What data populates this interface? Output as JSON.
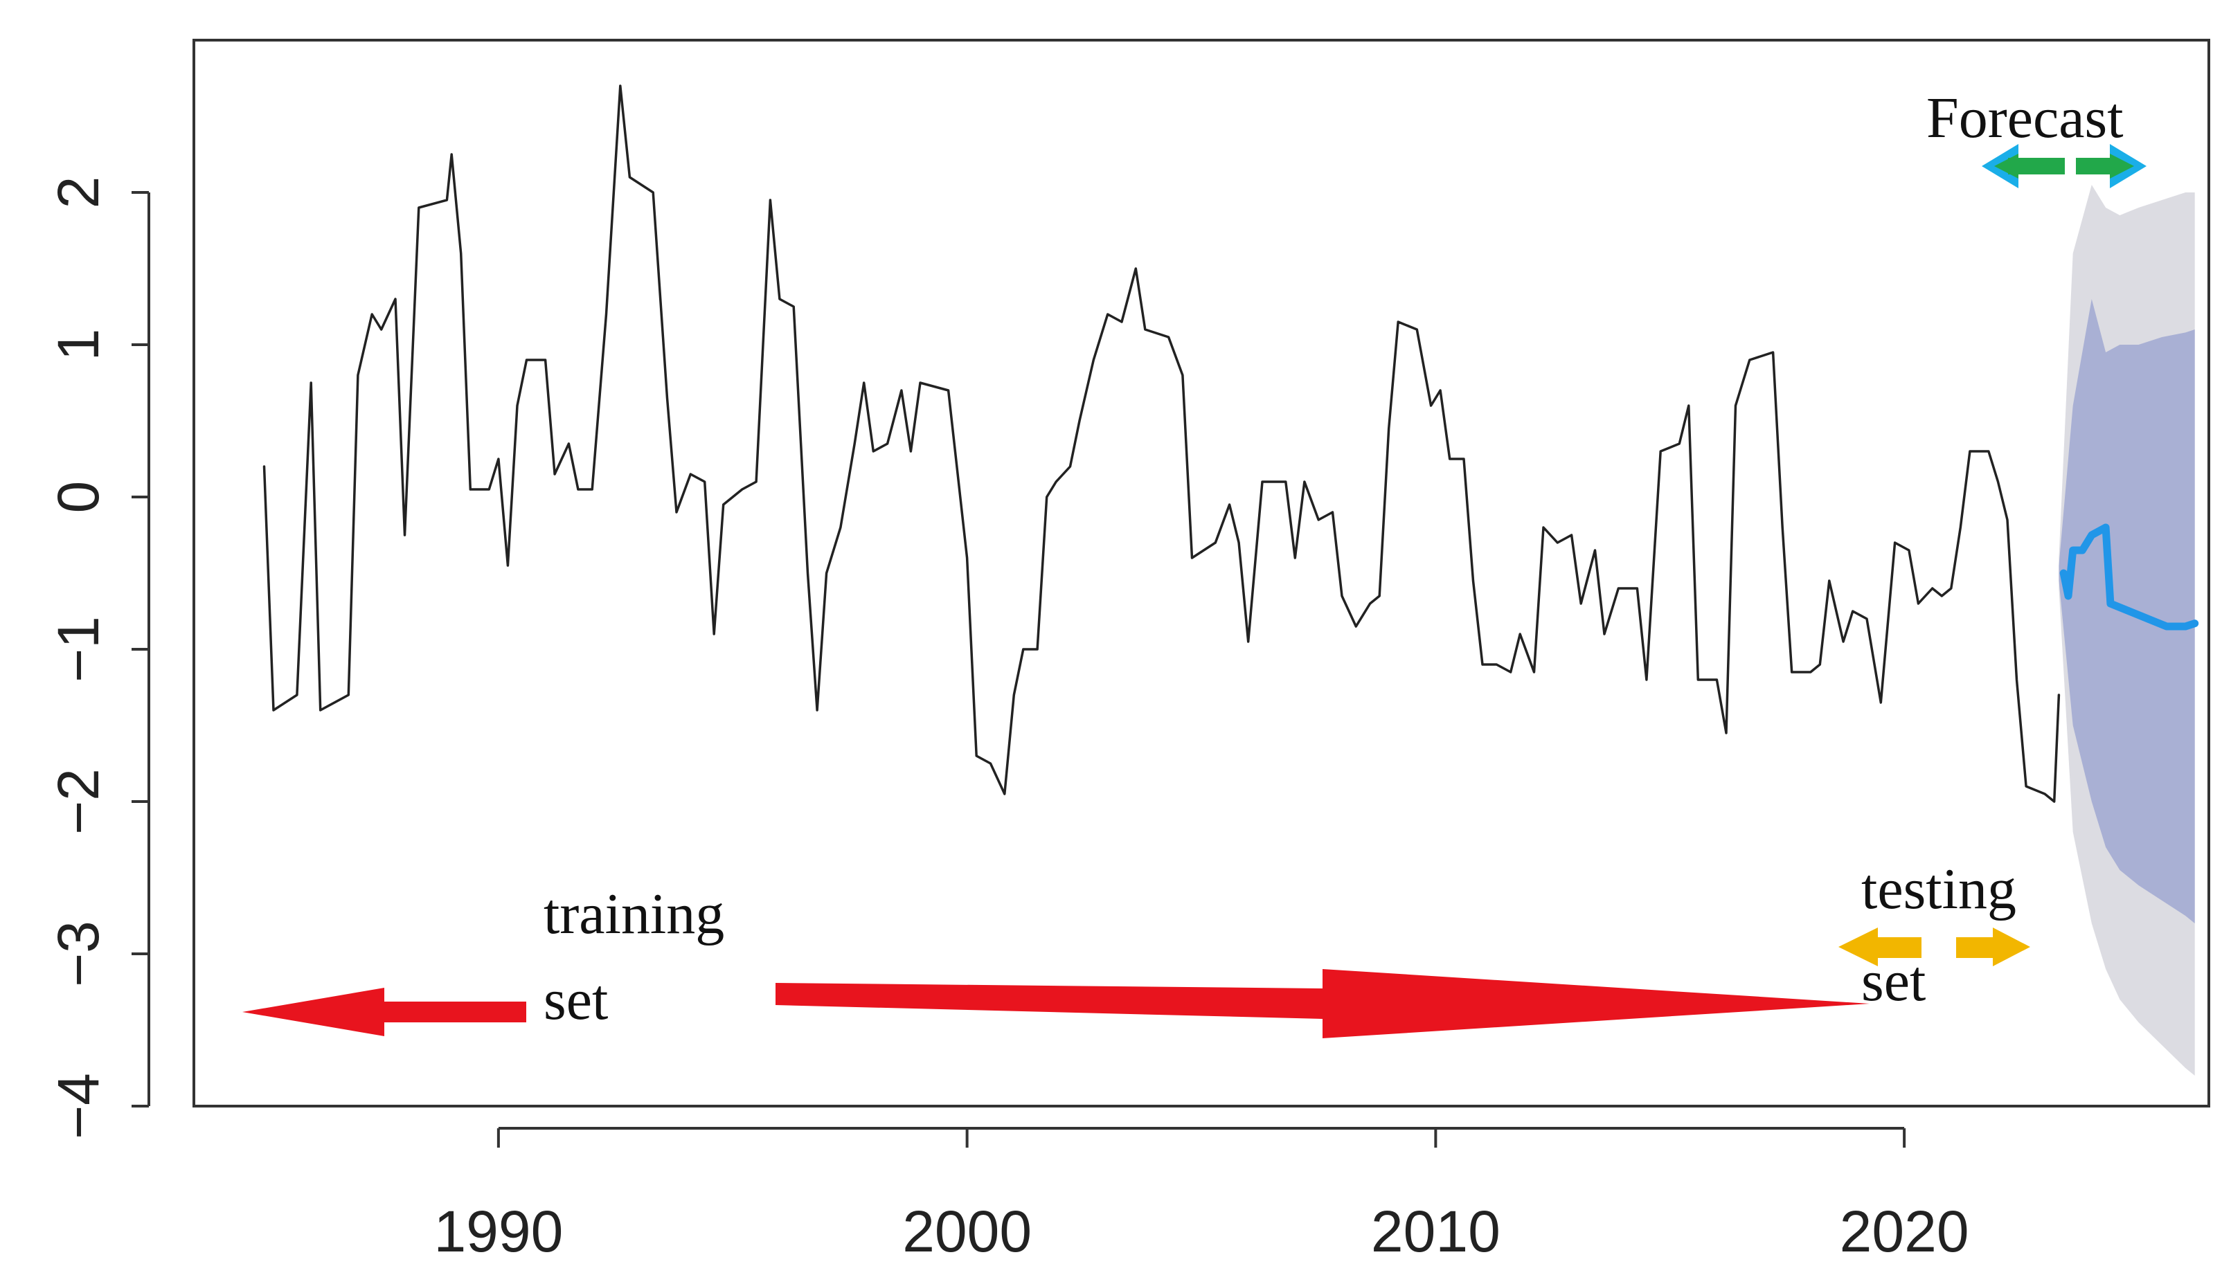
{
  "chart_data": {
    "type": "line",
    "title": "",
    "xlabel": "",
    "ylabel": "",
    "xlim": [
      1983.5,
      2026.5
    ],
    "ylim": [
      -4.0,
      3.0
    ],
    "x_ticks": [
      1990,
      2000,
      2010,
      2020
    ],
    "x_tick_labels": [
      "1990",
      "2000",
      "2010",
      "2020"
    ],
    "y_ticks": [
      -4,
      -3,
      -2,
      -1,
      0,
      1,
      2
    ],
    "y_tick_labels": [
      "−4",
      "−3",
      "−2",
      "−1",
      "0",
      "1",
      "2"
    ],
    "grid": false,
    "series": [
      {
        "role": "observed",
        "color": "#222222",
        "points": [
          [
            1985.0,
            0.2
          ],
          [
            1985.2,
            -1.4
          ],
          [
            1985.7,
            -1.3
          ],
          [
            1986.0,
            0.75
          ],
          [
            1986.2,
            -1.4
          ],
          [
            1986.8,
            -1.3
          ],
          [
            1987.0,
            0.8
          ],
          [
            1987.3,
            1.2
          ],
          [
            1987.5,
            1.1
          ],
          [
            1987.8,
            1.3
          ],
          [
            1988.0,
            -0.25
          ],
          [
            1988.3,
            1.9
          ],
          [
            1988.9,
            1.95
          ],
          [
            1989.0,
            2.25
          ],
          [
            1989.2,
            1.6
          ],
          [
            1989.4,
            0.05
          ],
          [
            1989.8,
            0.05
          ],
          [
            1990.0,
            0.25
          ],
          [
            1990.2,
            -0.45
          ],
          [
            1990.4,
            0.6
          ],
          [
            1990.6,
            0.9
          ],
          [
            1991.0,
            0.9
          ],
          [
            1991.2,
            0.15
          ],
          [
            1991.5,
            0.35
          ],
          [
            1991.7,
            0.05
          ],
          [
            1992.0,
            0.05
          ],
          [
            1992.3,
            1.2
          ],
          [
            1992.6,
            2.7
          ],
          [
            1992.8,
            2.1
          ],
          [
            1993.3,
            2.0
          ],
          [
            1993.6,
            0.65
          ],
          [
            1993.8,
            -0.1
          ],
          [
            1994.1,
            0.15
          ],
          [
            1994.4,
            0.1
          ],
          [
            1994.6,
            -0.9
          ],
          [
            1994.8,
            -0.05
          ],
          [
            1995.2,
            0.05
          ],
          [
            1995.5,
            0.1
          ],
          [
            1995.8,
            1.95
          ],
          [
            1996.0,
            1.3
          ],
          [
            1996.3,
            1.25
          ],
          [
            1996.6,
            -0.5
          ],
          [
            1996.8,
            -1.4
          ],
          [
            1997.0,
            -0.5
          ],
          [
            1997.3,
            -0.2
          ],
          [
            1997.6,
            0.35
          ],
          [
            1997.8,
            0.75
          ],
          [
            1998.0,
            0.3
          ],
          [
            1998.3,
            0.35
          ],
          [
            1998.6,
            0.7
          ],
          [
            1998.8,
            0.3
          ],
          [
            1999.0,
            0.75
          ],
          [
            1999.6,
            0.7
          ],
          [
            2000.0,
            -0.4
          ],
          [
            2000.2,
            -1.7
          ],
          [
            2000.5,
            -1.75
          ],
          [
            2000.8,
            -1.95
          ],
          [
            2001.0,
            -1.3
          ],
          [
            2001.2,
            -1.0
          ],
          [
            2001.5,
            -1.0
          ],
          [
            2001.7,
            0.0
          ],
          [
            2001.9,
            0.1
          ],
          [
            2002.2,
            0.2
          ],
          [
            2002.4,
            0.5
          ],
          [
            2002.7,
            0.9
          ],
          [
            2003.0,
            1.2
          ],
          [
            2003.3,
            1.15
          ],
          [
            2003.6,
            1.5
          ],
          [
            2003.8,
            1.1
          ],
          [
            2004.3,
            1.05
          ],
          [
            2004.6,
            0.8
          ],
          [
            2004.8,
            -0.4
          ],
          [
            2005.3,
            -0.3
          ],
          [
            2005.6,
            -0.05
          ],
          [
            2005.8,
            -0.3
          ],
          [
            2006.0,
            -0.95
          ],
          [
            2006.3,
            0.1
          ],
          [
            2006.8,
            0.1
          ],
          [
            2007.0,
            -0.4
          ],
          [
            2007.2,
            0.1
          ],
          [
            2007.5,
            -0.15
          ],
          [
            2007.8,
            -0.1
          ],
          [
            2008.0,
            -0.65
          ],
          [
            2008.3,
            -0.85
          ],
          [
            2008.6,
            -0.7
          ],
          [
            2008.8,
            -0.65
          ],
          [
            2009.0,
            0.45
          ],
          [
            2009.2,
            1.15
          ],
          [
            2009.6,
            1.1
          ],
          [
            2009.9,
            0.6
          ],
          [
            2010.1,
            0.7
          ],
          [
            2010.3,
            0.25
          ],
          [
            2010.6,
            0.25
          ],
          [
            2010.8,
            -0.55
          ],
          [
            2011.0,
            -1.1
          ],
          [
            2011.3,
            -1.1
          ],
          [
            2011.6,
            -1.15
          ],
          [
            2011.8,
            -0.9
          ],
          [
            2012.1,
            -1.15
          ],
          [
            2012.3,
            -0.2
          ],
          [
            2012.6,
            -0.3
          ],
          [
            2012.9,
            -0.25
          ],
          [
            2013.1,
            -0.7
          ],
          [
            2013.4,
            -0.35
          ],
          [
            2013.6,
            -0.9
          ],
          [
            2013.9,
            -0.6
          ],
          [
            2014.3,
            -0.6
          ],
          [
            2014.5,
            -1.2
          ],
          [
            2014.8,
            0.3
          ],
          [
            2015.2,
            0.35
          ],
          [
            2015.4,
            0.6
          ],
          [
            2015.6,
            -1.2
          ],
          [
            2016.0,
            -1.2
          ],
          [
            2016.2,
            -1.55
          ],
          [
            2016.4,
            0.6
          ],
          [
            2016.7,
            0.9
          ],
          [
            2017.2,
            0.95
          ],
          [
            2017.4,
            -0.2
          ],
          [
            2017.6,
            -1.15
          ],
          [
            2018.0,
            -1.15
          ],
          [
            2018.2,
            -1.1
          ],
          [
            2018.4,
            -0.55
          ],
          [
            2018.7,
            -0.95
          ],
          [
            2018.9,
            -0.75
          ],
          [
            2019.2,
            -0.8
          ],
          [
            2019.5,
            -1.35
          ],
          [
            2019.8,
            -0.3
          ],
          [
            2020.1,
            -0.35
          ],
          [
            2020.3,
            -0.7
          ],
          [
            2020.6,
            -0.6
          ],
          [
            2020.8,
            -0.65
          ],
          [
            2021.0,
            -0.6
          ],
          [
            2021.2,
            -0.2
          ],
          [
            2021.4,
            0.3
          ],
          [
            2021.8,
            0.3
          ],
          [
            2022.0,
            0.1
          ],
          [
            2022.2,
            -0.15
          ],
          [
            2022.4,
            -1.2
          ],
          [
            2022.6,
            -1.9
          ],
          [
            2023.0,
            -1.95
          ],
          [
            2023.2,
            -2.0
          ],
          [
            2023.3,
            -1.3
          ]
        ]
      },
      {
        "role": "forecast",
        "color": "#2196e8",
        "points": [
          [
            2023.4,
            -0.5
          ],
          [
            2023.5,
            -0.65
          ],
          [
            2023.6,
            -0.35
          ],
          [
            2023.8,
            -0.35
          ],
          [
            2024.0,
            -0.25
          ],
          [
            2024.3,
            -0.2
          ],
          [
            2024.4,
            -0.7
          ],
          [
            2024.8,
            -0.75
          ],
          [
            2025.2,
            -0.8
          ],
          [
            2025.6,
            -0.85
          ],
          [
            2026.0,
            -0.85
          ],
          [
            2026.2,
            -0.83
          ]
        ]
      }
    ],
    "intervals": [
      {
        "level": "outer",
        "color": "#dcdce2",
        "x": [
          2023.3,
          2023.6,
          2024.0,
          2024.3,
          2024.6,
          2025.0,
          2025.5,
          2026.0,
          2026.2
        ],
        "lower": [
          -0.6,
          -2.2,
          -2.8,
          -3.1,
          -3.3,
          -3.45,
          -3.6,
          -3.75,
          -3.8
        ],
        "upper": [
          -0.4,
          1.6,
          2.05,
          1.9,
          1.85,
          1.9,
          1.95,
          2.0,
          2.0
        ]
      },
      {
        "level": "inner",
        "color": "#a9b0d4",
        "x": [
          2023.3,
          2023.6,
          2024.0,
          2024.3,
          2024.6,
          2025.0,
          2025.5,
          2026.0,
          2026.2
        ],
        "lower": [
          -0.55,
          -1.5,
          -2.0,
          -2.3,
          -2.45,
          -2.55,
          -2.65,
          -2.75,
          -2.8
        ],
        "upper": [
          -0.45,
          0.6,
          1.3,
          0.95,
          1.0,
          1.0,
          1.05,
          1.08,
          1.1
        ]
      }
    ],
    "annotations": {
      "forecast_label": "Forecast",
      "training_label_1": "training",
      "training_label_2": "set",
      "testing_label_1": "testing",
      "testing_label_2": "set"
    },
    "colors": {
      "training_arrow": "#e8141e",
      "testing_arrow": "#f2b600",
      "forecast_arrow_head": "#1aaee8",
      "forecast_arrow_body": "#22a84a"
    }
  }
}
